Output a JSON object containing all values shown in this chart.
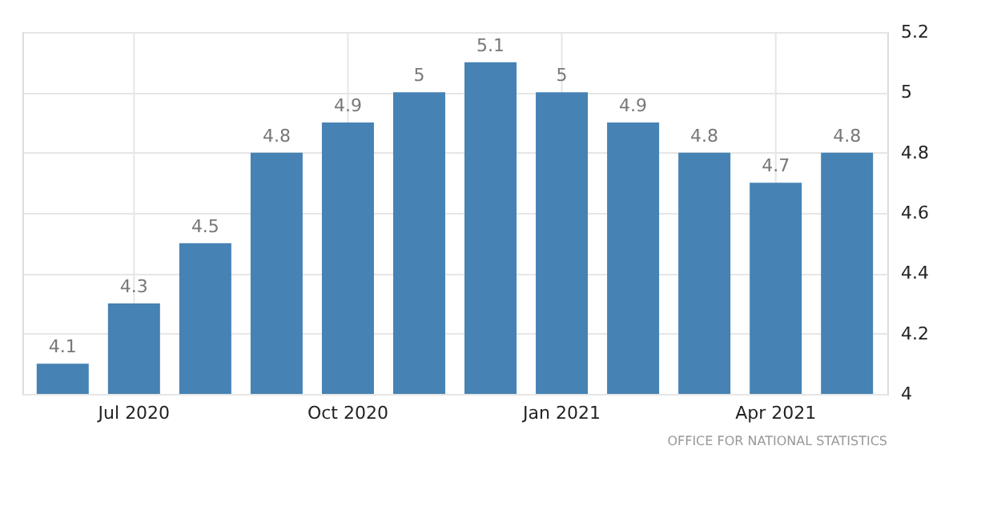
{
  "chart_data": {
    "type": "bar",
    "categories": [
      null,
      "Jul 2020",
      null,
      null,
      "Oct 2020",
      null,
      null,
      "Jan 2021",
      null,
      null,
      "Apr 2021",
      null
    ],
    "values": [
      4.1,
      4.3,
      4.5,
      4.8,
      4.9,
      5,
      5.1,
      5,
      4.9,
      4.8,
      4.7,
      4.8
    ],
    "color": "#4682b4",
    "ylim": [
      4,
      5.2
    ],
    "yticks": [
      4,
      4.2,
      4.4,
      4.6,
      4.8,
      5,
      5.2
    ],
    "grid": true,
    "data_labels": true,
    "annotations": [
      "OFFICE FOR NATIONAL STATISTICS"
    ]
  }
}
